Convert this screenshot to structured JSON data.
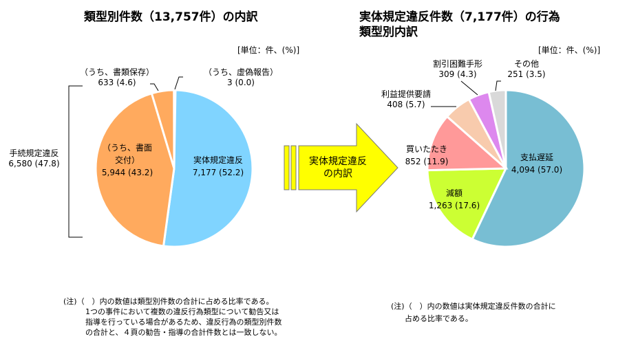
{
  "chart_data": [
    {
      "type": "pie",
      "title": "類型別件数（13,757件）の内訳",
      "unit_label": "[単位：件、(%)]",
      "slices": [
        {
          "label": "実体規定違反",
          "value": 7177,
          "percent": "52.2",
          "value_text": "7,177",
          "color": "#80D4FF"
        },
        {
          "label": "（うち、書面交付）",
          "value": 5944,
          "percent": "43.2",
          "value_text": "5,944",
          "color": "#FFAA5E"
        },
        {
          "label": "（うち、書類保存）",
          "value": 633,
          "percent": "4.6",
          "value_text": "633",
          "color": "#FFAA5E"
        },
        {
          "label": "（うち、虚偽報告）",
          "value": 3,
          "percent": "0.0",
          "value_text": "3",
          "color": "#FFAA5E"
        }
      ],
      "group": {
        "label": "手続規定違反",
        "value_text": "6,580",
        "percent": "47.8"
      },
      "note": [
        "(注)（　）内の数値は類型別件数の合計に占める比率である。",
        "1つの事件において複数の違反行為類型について勧告又は",
        "指導を行っている場合があるため、違反行為の類型別件数",
        "の合計と、４頁の勧告・指導の合計件数とは一致しない。"
      ]
    },
    {
      "type": "pie",
      "title": [
        "実体規定違反件数（7,177件）の行為",
        "類型別内訳"
      ],
      "unit_label": "[単位：件、(%)]",
      "slices": [
        {
          "label": "支払遅延",
          "value": 4094,
          "percent": "57.0",
          "value_text": "4,094",
          "color": "#78BED3"
        },
        {
          "label": "減額",
          "value": 1263,
          "percent": "17.6",
          "value_text": "1,263",
          "color": "#CCFF33"
        },
        {
          "label": "買いたたき",
          "value": 852,
          "percent": "11.9",
          "value_text": "852",
          "color": "#FF9999"
        },
        {
          "label": "利益提供要請",
          "value": 408,
          "percent": "5.7",
          "value_text": "408",
          "color": "#F8CBAD"
        },
        {
          "label": "割引困難手形",
          "value": 309,
          "percent": "4.3",
          "value_text": "309",
          "color": "#DD88EE"
        },
        {
          "label": "その他",
          "value": 251,
          "percent": "3.5",
          "value_text": "251",
          "color": "#D9D9D9"
        }
      ],
      "note": [
        "(注)（　）内の数値は実体規定違反件数の合計に",
        "占める比率である。"
      ]
    }
  ],
  "arrow": {
    "label": [
      "実体規定違反",
      "の内訳"
    ],
    "color": "#FFFF00"
  },
  "labels": {
    "l0": "7,177 (52.2)",
    "l1": "5,944 (43.2)",
    "l2": "633 (4.6)",
    "l3": "3 (0.0)",
    "grp": "6,580 (47.8)",
    "r0": "4,094 (57.0)",
    "r1": "1,263 (17.6)",
    "r2": "852 (11.9)",
    "r3": "408 (5.7)",
    "r4": "309 (4.3)",
    "r5": "251 (3.5)"
  }
}
